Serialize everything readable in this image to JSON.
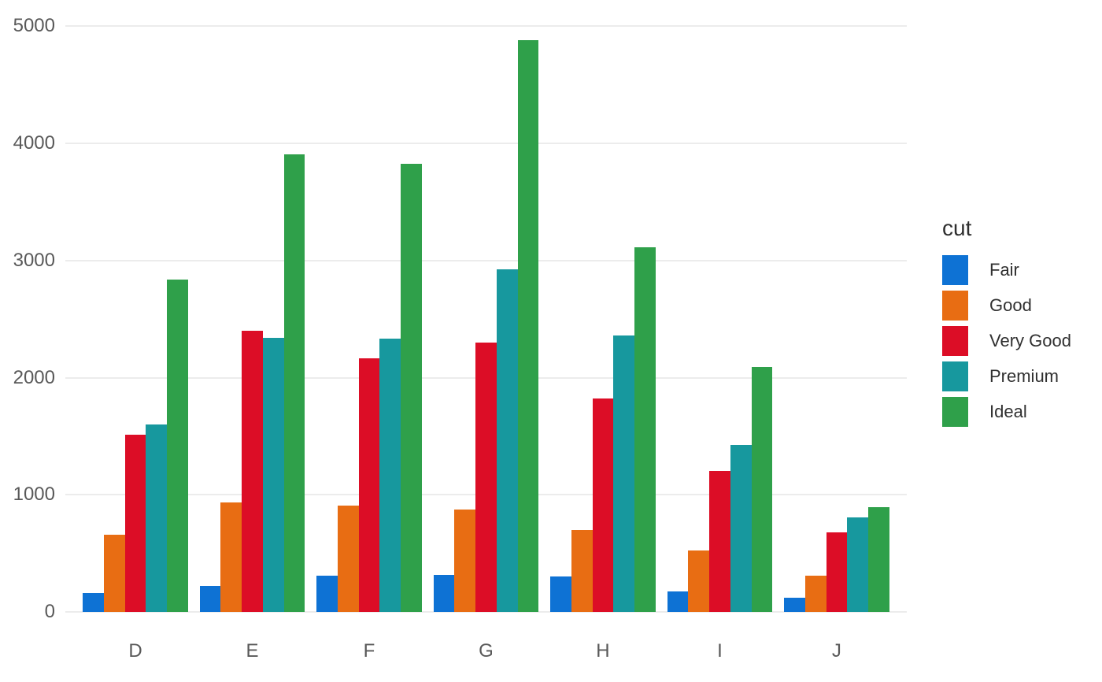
{
  "chart_data": {
    "type": "bar",
    "subtype": "grouped-dodged",
    "title": "",
    "xlabel": "",
    "ylabel": "",
    "categories": [
      "D",
      "E",
      "F",
      "G",
      "H",
      "I",
      "J"
    ],
    "series": [
      {
        "name": "Fair",
        "color": "#0E72D4",
        "values": [
          163,
          224,
          312,
          314,
          303,
          175,
          119
        ]
      },
      {
        "name": "Good",
        "color": "#E86D13",
        "values": [
          662,
          933,
          909,
          871,
          702,
          522,
          307
        ]
      },
      {
        "name": "Very Good",
        "color": "#DC0D26",
        "values": [
          1513,
          2400,
          2164,
          2299,
          1824,
          1204,
          678
        ]
      },
      {
        "name": "Premium",
        "color": "#17989E",
        "values": [
          1603,
          2337,
          2331,
          2924,
          2360,
          1428,
          808
        ]
      },
      {
        "name": "Ideal",
        "color": "#2FA04A",
        "values": [
          2834,
          3903,
          3826,
          4884,
          3115,
          2093,
          896
        ]
      }
    ],
    "legend": {
      "title": "cut",
      "position": "right",
      "labels": [
        "Fair",
        "Good",
        "Very Good",
        "Premium",
        "Ideal"
      ]
    },
    "yticks": [
      "0",
      "1000",
      "2000",
      "3000",
      "4000",
      "5000"
    ],
    "ytick_values": [
      0,
      1000,
      2000,
      3000,
      4000,
      5000
    ],
    "ylim": [
      0,
      5000
    ],
    "grid": "horizontal-only",
    "colors": {
      "grid": "#ECECEC",
      "axis_text": "#595959",
      "legend_text": "#303030",
      "background": "#FFFFFF"
    }
  }
}
